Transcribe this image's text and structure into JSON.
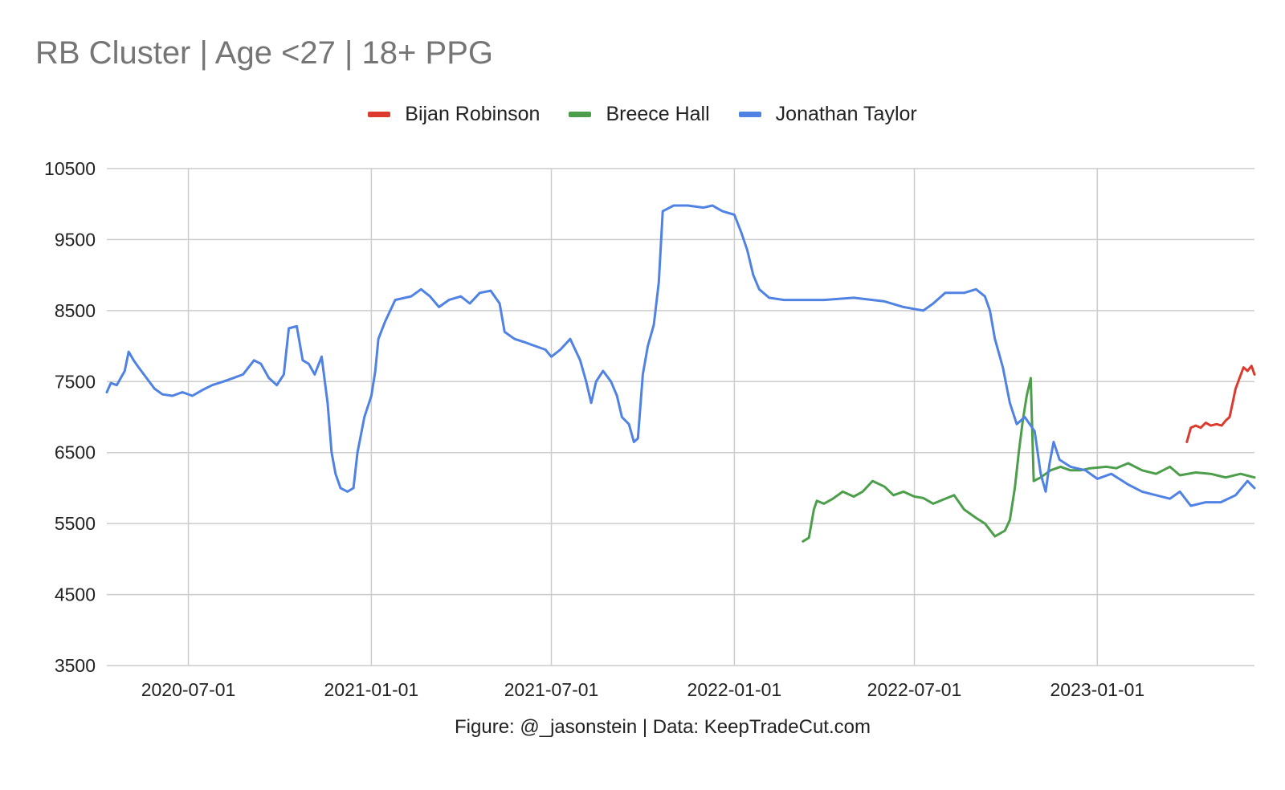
{
  "chart_data": {
    "type": "line",
    "title": "RB Cluster | Age <27 | 18+ PPG",
    "footer": "Figure: @_jasonstein | Data: KeepTradeCut.com",
    "xlabel": "",
    "ylabel": "",
    "x_axis_type": "date",
    "xlim": [
      "2020-04-10",
      "2023-06-08"
    ],
    "ylim": [
      3500,
      10500
    ],
    "yticks": [
      "10500",
      "9500",
      "8500",
      "7500",
      "6500",
      "5500",
      "4500",
      "3500"
    ],
    "xticks": [
      "2020-07-01",
      "2021-01-01",
      "2021-07-01",
      "2022-01-01",
      "2022-07-01",
      "2023-01-01"
    ],
    "grid": true,
    "legend_position": "top-center",
    "series": [
      {
        "name": "Bijan Robinson",
        "color": "#db3a2c",
        "points": [
          [
            "2023-04-01",
            6650
          ],
          [
            "2023-04-05",
            6850
          ],
          [
            "2023-04-10",
            6880
          ],
          [
            "2023-04-15",
            6850
          ],
          [
            "2023-04-20",
            6920
          ],
          [
            "2023-04-25",
            6880
          ],
          [
            "2023-05-01",
            6900
          ],
          [
            "2023-05-06",
            6880
          ],
          [
            "2023-05-10",
            6950
          ],
          [
            "2023-05-14",
            7000
          ],
          [
            "2023-05-17",
            7200
          ],
          [
            "2023-05-20",
            7400
          ],
          [
            "2023-05-24",
            7550
          ],
          [
            "2023-05-28",
            7700
          ],
          [
            "2023-06-01",
            7650
          ],
          [
            "2023-06-05",
            7720
          ],
          [
            "2023-06-08",
            7600
          ]
        ]
      },
      {
        "name": "Breece Hall",
        "color": "#4c9e4a",
        "points": [
          [
            "2022-03-11",
            5250
          ],
          [
            "2022-03-17",
            5300
          ],
          [
            "2022-03-22",
            5700
          ],
          [
            "2022-03-25",
            5820
          ],
          [
            "2022-04-01",
            5780
          ],
          [
            "2022-04-10",
            5850
          ],
          [
            "2022-04-20",
            5950
          ],
          [
            "2022-05-01",
            5880
          ],
          [
            "2022-05-10",
            5950
          ],
          [
            "2022-05-20",
            6100
          ],
          [
            "2022-06-01",
            6020
          ],
          [
            "2022-06-10",
            5900
          ],
          [
            "2022-06-20",
            5950
          ],
          [
            "2022-07-01",
            5880
          ],
          [
            "2022-07-10",
            5860
          ],
          [
            "2022-07-20",
            5780
          ],
          [
            "2022-08-01",
            5850
          ],
          [
            "2022-08-10",
            5900
          ],
          [
            "2022-08-20",
            5700
          ],
          [
            "2022-09-01",
            5580
          ],
          [
            "2022-09-10",
            5500
          ],
          [
            "2022-09-20",
            5320
          ],
          [
            "2022-09-30",
            5400
          ],
          [
            "2022-10-05",
            5550
          ],
          [
            "2022-10-10",
            6000
          ],
          [
            "2022-10-14",
            6500
          ],
          [
            "2022-10-18",
            6950
          ],
          [
            "2022-10-22",
            7300
          ],
          [
            "2022-10-26",
            7550
          ],
          [
            "2022-10-29",
            6100
          ],
          [
            "2022-11-05",
            6150
          ],
          [
            "2022-11-15",
            6250
          ],
          [
            "2022-11-25",
            6300
          ],
          [
            "2022-12-05",
            6250
          ],
          [
            "2022-12-15",
            6250
          ],
          [
            "2022-12-25",
            6280
          ],
          [
            "2023-01-10",
            6300
          ],
          [
            "2023-01-20",
            6280
          ],
          [
            "2023-02-01",
            6350
          ],
          [
            "2023-02-15",
            6250
          ],
          [
            "2023-03-01",
            6200
          ],
          [
            "2023-03-15",
            6300
          ],
          [
            "2023-03-25",
            6180
          ],
          [
            "2023-04-10",
            6220
          ],
          [
            "2023-04-25",
            6200
          ],
          [
            "2023-05-10",
            6150
          ],
          [
            "2023-05-25",
            6200
          ],
          [
            "2023-06-08",
            6150
          ]
        ]
      },
      {
        "name": "Jonathan Taylor",
        "color": "#4f82e3",
        "points": [
          [
            "2020-04-10",
            7350
          ],
          [
            "2020-04-14",
            7480
          ],
          [
            "2020-04-20",
            7450
          ],
          [
            "2020-04-28",
            7650
          ],
          [
            "2020-05-02",
            7920
          ],
          [
            "2020-05-07",
            7800
          ],
          [
            "2020-05-12",
            7700
          ],
          [
            "2020-05-20",
            7550
          ],
          [
            "2020-05-28",
            7400
          ],
          [
            "2020-06-05",
            7320
          ],
          [
            "2020-06-15",
            7300
          ],
          [
            "2020-06-25",
            7350
          ],
          [
            "2020-07-05",
            7300
          ],
          [
            "2020-07-15",
            7380
          ],
          [
            "2020-07-25",
            7450
          ],
          [
            "2020-08-05",
            7500
          ],
          [
            "2020-08-15",
            7550
          ],
          [
            "2020-08-25",
            7600
          ],
          [
            "2020-09-05",
            7800
          ],
          [
            "2020-09-12",
            7750
          ],
          [
            "2020-09-20",
            7550
          ],
          [
            "2020-09-28",
            7450
          ],
          [
            "2020-10-05",
            7600
          ],
          [
            "2020-10-10",
            8250
          ],
          [
            "2020-10-18",
            8280
          ],
          [
            "2020-10-24",
            7800
          ],
          [
            "2020-10-30",
            7750
          ],
          [
            "2020-11-05",
            7600
          ],
          [
            "2020-11-12",
            7850
          ],
          [
            "2020-11-18",
            7200
          ],
          [
            "2020-11-22",
            6500
          ],
          [
            "2020-11-26",
            6200
          ],
          [
            "2020-12-01",
            6000
          ],
          [
            "2020-12-08",
            5950
          ],
          [
            "2020-12-14",
            6000
          ],
          [
            "2020-12-18",
            6500
          ],
          [
            "2020-12-25",
            7000
          ],
          [
            "2021-01-01",
            7300
          ],
          [
            "2021-01-05",
            7650
          ],
          [
            "2021-01-08",
            8100
          ],
          [
            "2021-01-15",
            8350
          ],
          [
            "2021-01-25",
            8650
          ],
          [
            "2021-02-10",
            8700
          ],
          [
            "2021-02-20",
            8800
          ],
          [
            "2021-03-01",
            8700
          ],
          [
            "2021-03-10",
            8550
          ],
          [
            "2021-03-20",
            8650
          ],
          [
            "2021-04-01",
            8700
          ],
          [
            "2021-04-10",
            8600
          ],
          [
            "2021-04-20",
            8750
          ],
          [
            "2021-05-01",
            8780
          ],
          [
            "2021-05-10",
            8600
          ],
          [
            "2021-05-15",
            8200
          ],
          [
            "2021-05-25",
            8100
          ],
          [
            "2021-06-05",
            8050
          ],
          [
            "2021-06-15",
            8000
          ],
          [
            "2021-06-25",
            7950
          ],
          [
            "2021-07-01",
            7850
          ],
          [
            "2021-07-10",
            7950
          ],
          [
            "2021-07-20",
            8100
          ],
          [
            "2021-07-30",
            7800
          ],
          [
            "2021-08-05",
            7500
          ],
          [
            "2021-08-10",
            7200
          ],
          [
            "2021-08-15",
            7500
          ],
          [
            "2021-08-22",
            7650
          ],
          [
            "2021-08-30",
            7500
          ],
          [
            "2021-09-05",
            7300
          ],
          [
            "2021-09-10",
            7000
          ],
          [
            "2021-09-17",
            6900
          ],
          [
            "2021-09-22",
            6650
          ],
          [
            "2021-09-26",
            6700
          ],
          [
            "2021-10-01",
            7600
          ],
          [
            "2021-10-06",
            8000
          ],
          [
            "2021-10-12",
            8300
          ],
          [
            "2021-10-17",
            8900
          ],
          [
            "2021-10-21",
            9900
          ],
          [
            "2021-11-01",
            9980
          ],
          [
            "2021-11-15",
            9980
          ],
          [
            "2021-12-01",
            9950
          ],
          [
            "2021-12-10",
            9980
          ],
          [
            "2021-12-20",
            9900
          ],
          [
            "2022-01-01",
            9850
          ],
          [
            "2022-01-08",
            9600
          ],
          [
            "2022-01-14",
            9350
          ],
          [
            "2022-01-20",
            9000
          ],
          [
            "2022-01-26",
            8800
          ],
          [
            "2022-02-05",
            8680
          ],
          [
            "2022-02-20",
            8650
          ],
          [
            "2022-03-10",
            8650
          ],
          [
            "2022-04-01",
            8650
          ],
          [
            "2022-05-01",
            8680
          ],
          [
            "2022-06-01",
            8630
          ],
          [
            "2022-06-20",
            8550
          ],
          [
            "2022-07-10",
            8500
          ],
          [
            "2022-07-20",
            8600
          ],
          [
            "2022-08-01",
            8750
          ],
          [
            "2022-08-20",
            8750
          ],
          [
            "2022-09-01",
            8800
          ],
          [
            "2022-09-10",
            8700
          ],
          [
            "2022-09-15",
            8500
          ],
          [
            "2022-09-20",
            8100
          ],
          [
            "2022-09-28",
            7700
          ],
          [
            "2022-10-05",
            7200
          ],
          [
            "2022-10-12",
            6900
          ],
          [
            "2022-10-20",
            7000
          ],
          [
            "2022-10-30",
            6800
          ],
          [
            "2022-11-05",
            6200
          ],
          [
            "2022-11-10",
            5950
          ],
          [
            "2022-11-14",
            6350
          ],
          [
            "2022-11-18",
            6650
          ],
          [
            "2022-11-24",
            6400
          ],
          [
            "2022-12-05",
            6300
          ],
          [
            "2022-12-20",
            6250
          ],
          [
            "2023-01-01",
            6130
          ],
          [
            "2023-01-15",
            6200
          ],
          [
            "2023-02-01",
            6050
          ],
          [
            "2023-02-15",
            5950
          ],
          [
            "2023-03-01",
            5900
          ],
          [
            "2023-03-15",
            5850
          ],
          [
            "2023-03-25",
            5950
          ],
          [
            "2023-04-05",
            5750
          ],
          [
            "2023-04-20",
            5800
          ],
          [
            "2023-05-05",
            5800
          ],
          [
            "2023-05-20",
            5900
          ],
          [
            "2023-06-01",
            6100
          ],
          [
            "2023-06-08",
            6000
          ]
        ]
      }
    ]
  }
}
